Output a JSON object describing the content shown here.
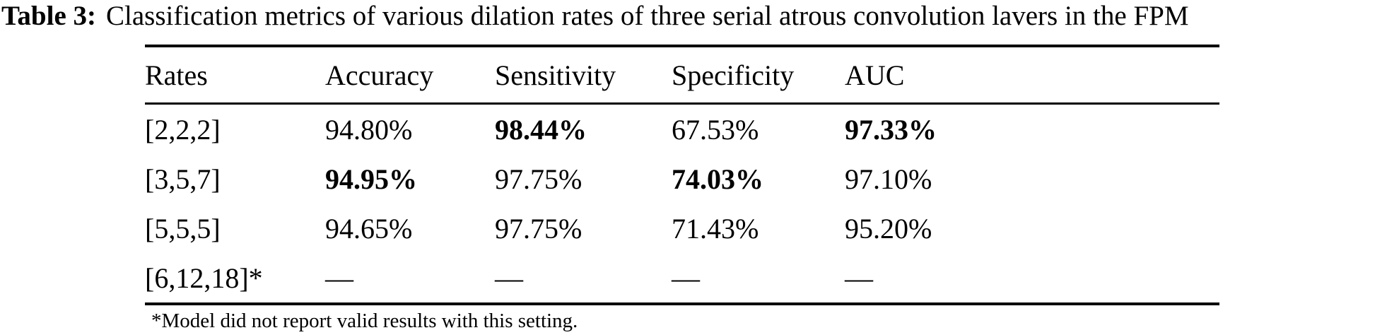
{
  "caption": {
    "label": "Table 3:",
    "text": "Classification metrics of various dilation rates of three serial atrous convolution lavers in the FPM"
  },
  "table": {
    "columns": [
      "Rates",
      "Accuracy",
      "Sensitivity",
      "Specificity",
      "AUC"
    ],
    "rows": [
      {
        "cells": [
          "[2,2,2]",
          "94.80%",
          "98.44%",
          "67.53%",
          "97.33%"
        ],
        "bold": [
          false,
          false,
          true,
          false,
          true
        ]
      },
      {
        "cells": [
          "[3,5,7]",
          "94.95%",
          "97.75%",
          "74.03%",
          "97.10%"
        ],
        "bold": [
          false,
          true,
          false,
          true,
          false
        ]
      },
      {
        "cells": [
          "[5,5,5]",
          "94.65%",
          "97.75%",
          "71.43%",
          "95.20%"
        ],
        "bold": [
          false,
          false,
          false,
          false,
          false
        ]
      },
      {
        "cells": [
          "[6,12,18]*",
          "—",
          "—",
          "—",
          "—"
        ],
        "bold": [
          false,
          false,
          false,
          false,
          false
        ]
      }
    ],
    "footnote": "*Model did not report valid results with this setting."
  }
}
